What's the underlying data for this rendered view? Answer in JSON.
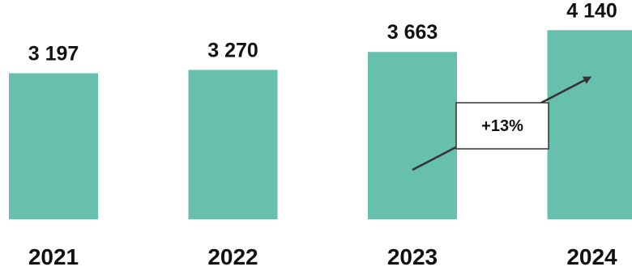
{
  "chart_data": {
    "type": "bar",
    "categories": [
      "2021",
      "2022",
      "2023",
      "2024"
    ],
    "values": [
      3197,
      3270,
      3663,
      4140
    ],
    "data_labels": [
      "3 197",
      "3 270",
      "3 663",
      "4 140"
    ],
    "title": "",
    "xlabel": "",
    "ylabel": "",
    "ylim": [
      0,
      4800
    ],
    "grid": false,
    "legend": "none",
    "bar_color": "#67bfad",
    "annotation": {
      "text": "+13%",
      "from_category": "2023",
      "to_category": "2024"
    }
  }
}
